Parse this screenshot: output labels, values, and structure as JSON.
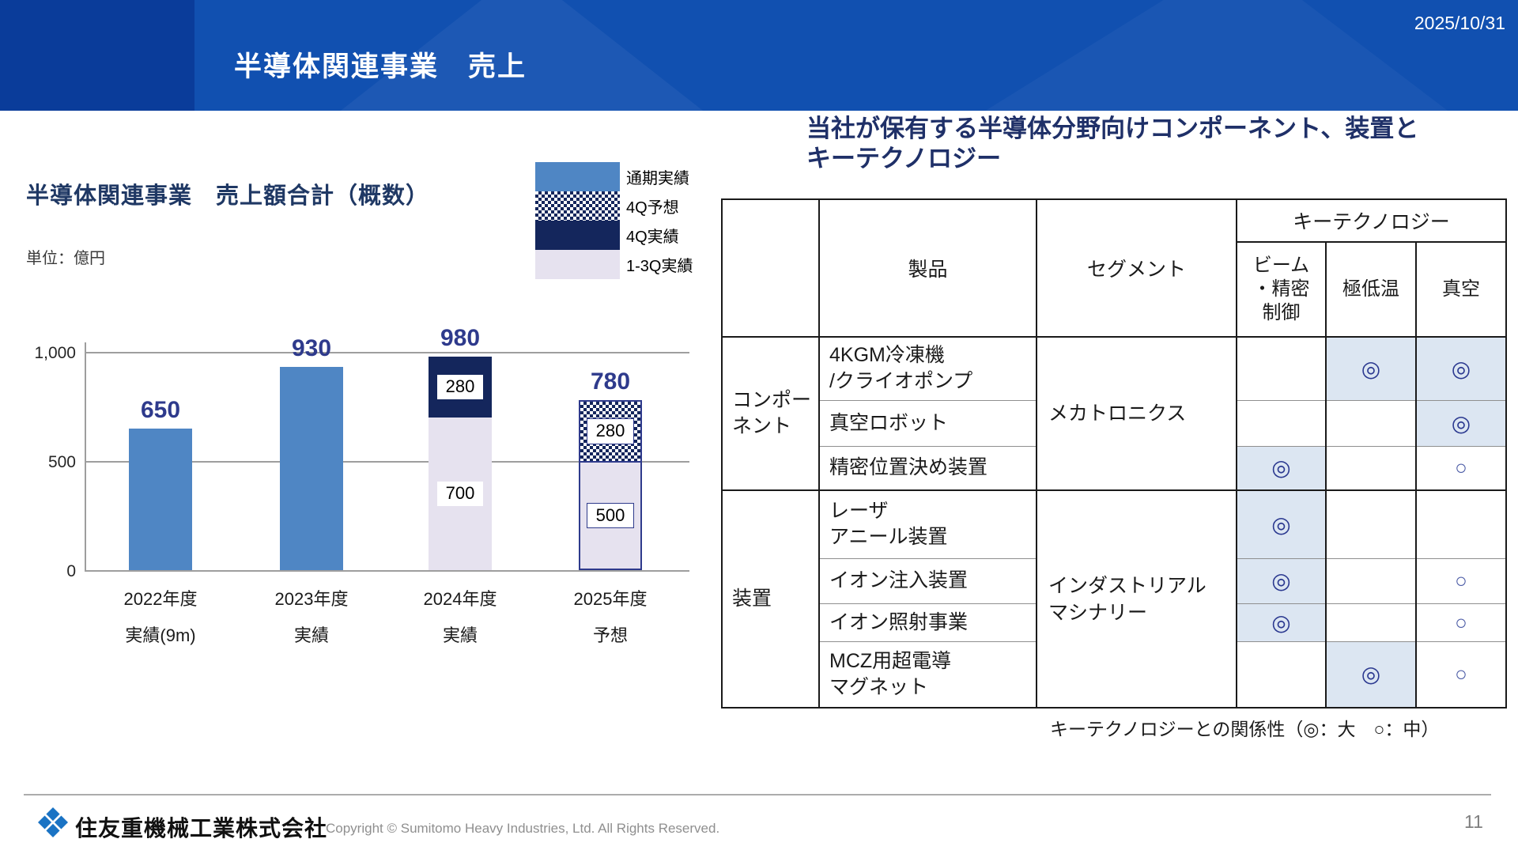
{
  "header": {
    "title": "半導体関連事業　売上",
    "date": "2025/10/31"
  },
  "chart": {
    "title": "半導体関連事業　売上額合計（概数）",
    "unit_label": "単位：億円",
    "legend": [
      {
        "label": "通期実績"
      },
      {
        "label": "4Q予想"
      },
      {
        "label": "4Q実績"
      },
      {
        "label": "1-3Q実績"
      }
    ],
    "y_ticks": {
      "t1000": "1,000",
      "t500": "500",
      "t0": "0"
    },
    "bars": [
      {
        "total_label": "650",
        "x_line1": "2022年度",
        "x_line2": "実績(9m)",
        "segments": [
          {
            "style": "blue",
            "value": 650,
            "label": ""
          }
        ]
      },
      {
        "total_label": "930",
        "x_line1": "2023年度",
        "x_line2": "実績",
        "segments": [
          {
            "style": "blue",
            "value": 930,
            "label": ""
          }
        ]
      },
      {
        "total_label": "980",
        "x_line1": "2024年度",
        "x_line2": "実績",
        "segments": [
          {
            "style": "lavender",
            "value": 700,
            "label": "700"
          },
          {
            "style": "navy",
            "value": 280,
            "label": "280"
          }
        ]
      },
      {
        "total_label": "780",
        "x_line1": "2025年度",
        "x_line2": "予想",
        "segments": [
          {
            "style": "lavender-outline",
            "value": 500,
            "label": "500"
          },
          {
            "style": "checker-outline",
            "value": 280,
            "label": "280"
          }
        ]
      }
    ]
  },
  "chart_data": {
    "type": "bar",
    "stacked": true,
    "title": "半導体関連事業　売上額合計（概数）",
    "ylabel": "億円",
    "categories": [
      "2022年度 実績(9m)",
      "2023年度 実績",
      "2024年度 実績",
      "2025年度 予想"
    ],
    "series": [
      {
        "name": "通期実績",
        "values": [
          650,
          930,
          0,
          0
        ]
      },
      {
        "name": "1-3Q実績",
        "values": [
          0,
          0,
          700,
          500
        ]
      },
      {
        "name": "4Q実績",
        "values": [
          0,
          0,
          280,
          0
        ]
      },
      {
        "name": "4Q予想",
        "values": [
          0,
          0,
          0,
          280
        ]
      }
    ],
    "totals": [
      650,
      930,
      980,
      780
    ],
    "ylim": [
      0,
      1100
    ],
    "y_gridlines": [
      0,
      500,
      1000
    ],
    "legend_position": "top-right",
    "grid": true
  },
  "right": {
    "heading_line1": "当社が保有する半導体分野向けコンポーネント、装置と",
    "heading_line2": "キーテクノロジー",
    "table": {
      "header": {
        "product": "製品",
        "segment": "セグメント",
        "keytech": "キーテクノロジー",
        "sub_beam": "ビーム\n・精密\n制御",
        "sub_cryo": "極低温",
        "sub_vacuum": "真空"
      },
      "groups": [
        {
          "label": "コンポー\nネント",
          "segment": "メカトロニクス"
        },
        {
          "label": "装置",
          "segment": "インダストリアル\nマシナリー"
        }
      ],
      "rows": [
        {
          "product": "4KGM冷凍機\n/クライオポンプ",
          "beam": "",
          "cryo": "◎",
          "vacuum": "◎"
        },
        {
          "product": "真空ロボット",
          "beam": "",
          "cryo": "",
          "vacuum": "◎"
        },
        {
          "product": "精密位置決め装置",
          "beam": "◎",
          "cryo": "",
          "vacuum": "○"
        },
        {
          "product": "レーザ\nアニール装置",
          "beam": "◎",
          "cryo": "",
          "vacuum": ""
        },
        {
          "product": "イオン注入装置",
          "beam": "◎",
          "cryo": "",
          "vacuum": "○"
        },
        {
          "product": "イオン照射事業",
          "beam": "◎",
          "cryo": "",
          "vacuum": "○"
        },
        {
          "product": "MCZ用超電導\nマグネット",
          "beam": "",
          "cryo": "◎",
          "vacuum": "○"
        }
      ]
    },
    "note": "キーテクノロジーとの関係性（◎：大　○：中）"
  },
  "footer": {
    "company": "住友重機械工業株式会社",
    "copyright": "Copyright © Sumitomo Heavy Industries, Ltd. All Rights Reserved.",
    "page": "11"
  }
}
